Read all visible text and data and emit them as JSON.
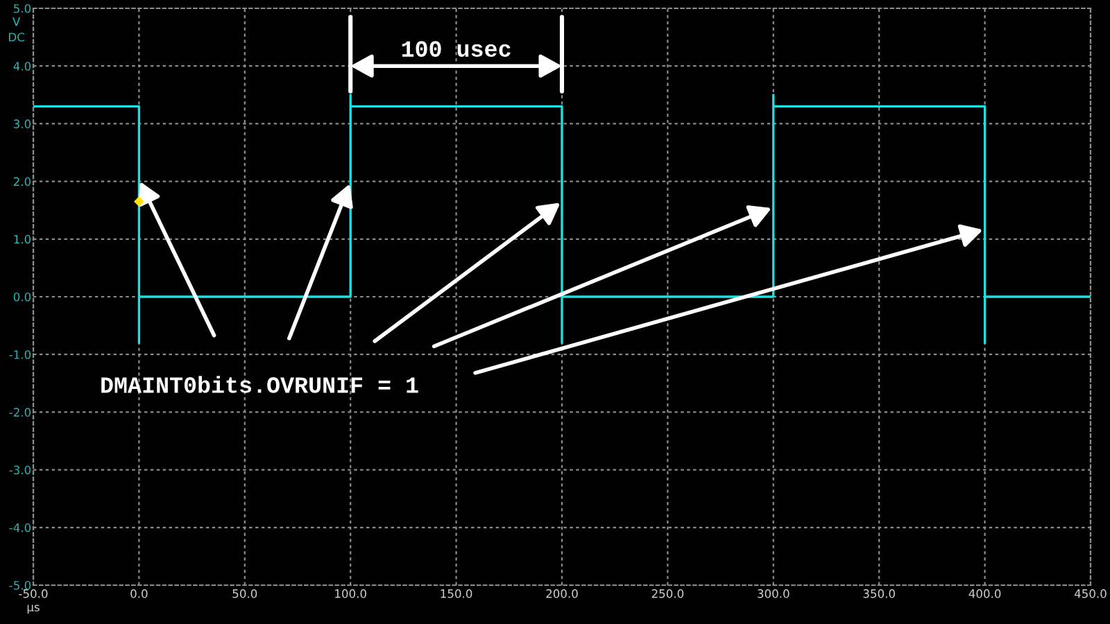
{
  "chart_data": {
    "type": "line",
    "xlabel": "µs",
    "ylabel": "V\nDC",
    "xlim": [
      -50,
      450
    ],
    "xticks": [
      {
        "value": -50,
        "label": "-50.0"
      },
      {
        "value": 0,
        "label": "0.0"
      },
      {
        "value": 50,
        "label": "50.0"
      },
      {
        "value": 100,
        "label": "100.0"
      },
      {
        "value": 150,
        "label": "150.0"
      },
      {
        "value": 200,
        "label": "200.0"
      },
      {
        "value": 250,
        "label": "250.0"
      },
      {
        "value": 300,
        "label": "300.0"
      },
      {
        "value": 350,
        "label": "350.0"
      },
      {
        "value": 400,
        "label": "400.0"
      },
      {
        "value": 450,
        "label": "450.0"
      }
    ],
    "ylim": [
      -5,
      5
    ],
    "yticks": [
      {
        "value": -5,
        "label": "-5.0"
      },
      {
        "value": -4,
        "label": "-4.0"
      },
      {
        "value": -3,
        "label": "-3.0"
      },
      {
        "value": -2,
        "label": "-2.0"
      },
      {
        "value": -1,
        "label": "-1.0"
      },
      {
        "value": 0,
        "label": "0.0"
      },
      {
        "value": 1,
        "label": "1.0"
      },
      {
        "value": 2,
        "label": "2.0"
      },
      {
        "value": 3,
        "label": "3.0"
      },
      {
        "value": 4,
        "label": "4.0"
      },
      {
        "value": 5,
        "label": "5.0"
      }
    ],
    "grid": true,
    "series": [
      {
        "color": "#1fe0e0",
        "marker": "none",
        "line_style": "solid",
        "x": [
          -50,
          0,
          0,
          0,
          100,
          100,
          100,
          200,
          200,
          200,
          300,
          300,
          300,
          400,
          400,
          400,
          450
        ],
        "values": [
          3.3,
          3.3,
          -0.8,
          0,
          0,
          3.5,
          3.3,
          3.3,
          -0.8,
          0,
          0,
          3.5,
          3.3,
          3.3,
          -0.8,
          0,
          0
        ]
      },
      {
        "type": "scatter",
        "color": "#ffe600",
        "marker": "diamond",
        "x": [
          0
        ],
        "values": [
          1.65
        ]
      }
    ],
    "annotations": [
      "100 usec",
      "DMAINT0bits.OVRUNIF = 1"
    ]
  }
}
